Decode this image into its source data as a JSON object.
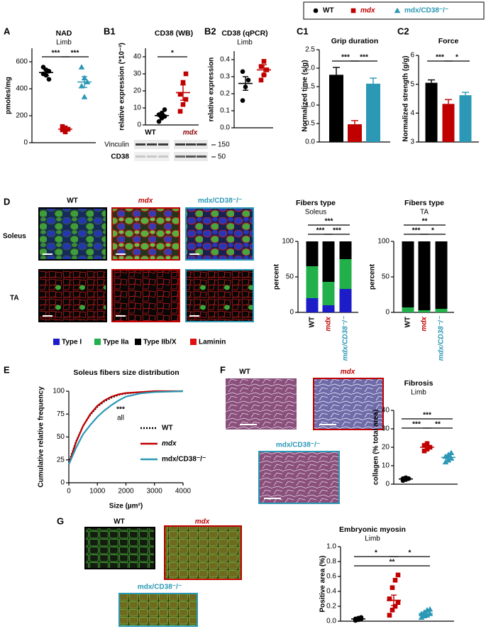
{
  "figure": {
    "legend": [
      {
        "name": "WT",
        "color": "#000000",
        "marker": "circle"
      },
      {
        "name": "mdx",
        "color": "#c00000",
        "marker": "square"
      },
      {
        "name": "mdx/CD38⁻/⁻",
        "color": "#2b98b5",
        "marker": "triangle"
      }
    ],
    "panel_labels": [
      "A",
      "B1",
      "B2",
      "C1",
      "C2",
      "D",
      "E",
      "F",
      "G"
    ],
    "blot": {
      "groups": [
        "WT",
        "mdx"
      ],
      "rows": [
        "Vinculin",
        "CD38"
      ],
      "sizes": [
        150,
        50
      ]
    },
    "d_images": {
      "columns": [
        "WT",
        "mdx",
        "mdx/CD38⁻/⁻"
      ],
      "rows": [
        "Soleus",
        "TA"
      ]
    },
    "fiber_legend": [
      {
        "name": "Type I",
        "color": "#1c1cc8"
      },
      {
        "name": "Type IIa",
        "color": "#22b04a"
      },
      {
        "name": "Type IIb/X",
        "color": "#000000"
      },
      {
        "name": "Laminin",
        "color": "#e01010"
      }
    ],
    "f_images": [
      "WT",
      "mdx",
      "mdx/CD38⁻/⁻"
    ],
    "g_images": [
      "WT",
      "mdx",
      "mdx/CD38⁻/⁻"
    ]
  },
  "chart_data": [
    {
      "type": "dotplot",
      "title": "NAD",
      "subtitle": "Limb",
      "ylabel": "pmoles/mg",
      "ylim": [
        0,
        700
      ],
      "yticks": [
        0,
        200,
        400,
        600
      ],
      "series": [
        {
          "color": "#000000",
          "marker": "circle",
          "values": [
            560,
            540,
            530,
            510,
            500,
            470
          ],
          "mean": 520,
          "sem": 22
        },
        {
          "color": "#c00000",
          "marker": "square",
          "values": [
            120,
            110,
            100,
            95,
            80
          ],
          "mean": 100,
          "sem": 12
        },
        {
          "color": "#2b98b5",
          "marker": "triangle",
          "values": [
            560,
            480,
            450,
            420,
            340
          ],
          "mean": 450,
          "sem": 40
        }
      ],
      "brackets": [
        {
          "label": "***",
          "between": [
            0,
            1
          ]
        },
        {
          "label": "***",
          "between": [
            1,
            2
          ]
        }
      ]
    },
    {
      "type": "dotplot",
      "title": "CD38 (WB)",
      "ylabel": "relative expression (*10⁻³)",
      "ylim": [
        0,
        45
      ],
      "yticks": [
        0,
        10,
        20,
        30,
        40
      ],
      "series": [
        {
          "color": "#000000",
          "marker": "circle",
          "values": [
            2,
            4,
            5,
            6,
            7,
            9
          ],
          "mean": 5.5,
          "sem": 1
        },
        {
          "color": "#c00000",
          "marker": "square",
          "values": [
            8,
            12,
            15,
            18,
            25,
            30
          ],
          "mean": 19,
          "sem": 4.5
        }
      ],
      "brackets": [
        {
          "label": "*",
          "between": [
            0,
            1
          ]
        }
      ]
    },
    {
      "type": "dotplot",
      "title": "CD38 (qPCR)",
      "subtitle": "Limb",
      "ylabel": "relative expression",
      "ylim": [
        0,
        0.45
      ],
      "yticks": [
        {
          "value": 0,
          "label": "0.0"
        },
        0.1,
        0.2,
        0.3,
        0.4
      ],
      "series": [
        {
          "color": "#000000",
          "marker": "circle",
          "values": [
            0.16,
            0.24,
            0.28,
            0.33
          ],
          "mean": 0.26,
          "sem": 0.04
        },
        {
          "color": "#c00000",
          "marker": "square",
          "values": [
            0.28,
            0.31,
            0.34,
            0.36,
            0.39
          ],
          "mean": 0.34,
          "sem": 0.03
        }
      ]
    },
    {
      "type": "bar",
      "title": "Grip duration",
      "ylabel": "Normalized time (s/g)",
      "ylim": [
        0,
        2.5
      ],
      "yticks": [
        {
          "value": 0,
          "label": "0.0"
        },
        0.5,
        {
          "value": 1,
          "label": "1.0"
        },
        1.5,
        {
          "value": 2,
          "label": "2.0"
        },
        2.5
      ],
      "values": [
        1.82,
        0.48,
        1.58
      ],
      "errors": [
        0.2,
        0.1,
        0.15
      ],
      "colors": [
        "#000000",
        "#c00000",
        "#2b98b5"
      ],
      "brackets": [
        {
          "label": "***",
          "between": [
            0,
            1
          ]
        },
        {
          "label": "***",
          "between": [
            1,
            2
          ]
        }
      ]
    },
    {
      "type": "bar",
      "title": "Force",
      "ylabel": "Normalized strength (g/g)",
      "ylim": [
        3,
        6
      ],
      "yticks": [
        3,
        4,
        5,
        6
      ],
      "values": [
        5.05,
        4.32,
        4.62
      ],
      "errors": [
        0.1,
        0.15,
        0.1
      ],
      "colors": [
        "#000000",
        "#c00000",
        "#2b98b5"
      ],
      "brackets": [
        {
          "label": "***",
          "between": [
            0,
            1
          ]
        },
        {
          "label": "*",
          "between": [
            1,
            2
          ]
        }
      ]
    },
    {
      "type": "stacked",
      "title": "Fibers type",
      "subtitle": "Soleus",
      "ylabel": "percent",
      "ylim": [
        0,
        100
      ],
      "yticks": [
        0,
        50,
        100
      ],
      "categories": [
        "WT",
        "mdx",
        "mdx/CD38⁻/⁻"
      ],
      "series": [
        {
          "color": "#1c1cc8",
          "values": [
            20,
            10,
            33
          ]
        },
        {
          "color": "#22b04a",
          "values": [
            45,
            33,
            42
          ]
        },
        {
          "color": "#000000",
          "values": [
            35,
            57,
            25
          ]
        }
      ],
      "brackets": [
        {
          "label": "***",
          "between": [
            0,
            2
          ]
        },
        {
          "label": "***",
          "between": [
            0,
            1
          ]
        },
        {
          "label": "***",
          "between": [
            1,
            2
          ]
        }
      ]
    },
    {
      "type": "stacked",
      "title": "Fibers type",
      "subtitle": "TA",
      "ylabel": "percent",
      "ylim": [
        0,
        100
      ],
      "yticks": [
        0,
        50,
        100
      ],
      "categories": [
        "WT",
        "mdx",
        "mdx/CD38⁻/⁻"
      ],
      "series": [
        {
          "color": "#1c1cc8",
          "values": [
            0,
            0,
            0
          ]
        },
        {
          "color": "#22b04a",
          "values": [
            7,
            3,
            5
          ]
        },
        {
          "color": "#000000",
          "values": [
            93,
            97,
            95
          ]
        }
      ],
      "brackets": [
        {
          "label": "**",
          "between": [
            0,
            2
          ]
        },
        {
          "label": "***",
          "between": [
            0,
            1
          ]
        },
        {
          "label": "*",
          "between": [
            1,
            2
          ]
        }
      ]
    },
    {
      "type": "line",
      "title": "Soleus fibers size distribution",
      "ylabel": "Cumulative relative frequency",
      "xlabel": "Size (µm²)",
      "x": [
        0,
        250,
        500,
        750,
        1000,
        1250,
        1500,
        1750,
        2000,
        2500,
        3000,
        4000
      ],
      "xlim": [
        0,
        4000
      ],
      "xticks": [
        0,
        1000,
        2000,
        3000,
        4000
      ],
      "ylim": [
        0,
        100
      ],
      "yticks": [
        0,
        25,
        50,
        75,
        100
      ],
      "series": [
        {
          "name": "WT",
          "color": "#000000",
          "style": "dotted",
          "values": [
            22,
            45,
            62,
            74,
            83,
            89,
            93,
            96,
            97.5,
            99,
            99.5,
            100
          ]
        },
        {
          "name": "mdx",
          "color": "#c00000",
          "style": "solid",
          "values": [
            20,
            44,
            62,
            75,
            84,
            90,
            94,
            96.5,
            98,
            99,
            100,
            100
          ]
        },
        {
          "name": "mdx/CD38⁻/⁻",
          "color": "#2b98b5",
          "style": "solid",
          "values": [
            20,
            38,
            53,
            63,
            72,
            79,
            85,
            90,
            94,
            97.5,
            99,
            100
          ]
        }
      ],
      "annotations": [
        "***",
        "all"
      ]
    },
    {
      "type": "dotplot",
      "title": "Fibrosis",
      "subtitle": "Limb",
      "ylabel": "collagen (% total area)",
      "ylim": [
        0,
        40
      ],
      "yticks": [
        0,
        10,
        20,
        30,
        40
      ],
      "series": [
        {
          "color": "#000000",
          "marker": "circle",
          "values": [
            2,
            2.5,
            3,
            3,
            3.5
          ],
          "mean": 2.8,
          "sem": 0.3
        },
        {
          "color": "#c00000",
          "marker": "square",
          "values": [
            18,
            19,
            20,
            21,
            22
          ],
          "mean": 20,
          "sem": 1
        },
        {
          "color": "#2b98b5",
          "marker": "triangle",
          "values": [
            12,
            13,
            14,
            15,
            16,
            17
          ],
          "mean": 14.5,
          "sem": 1
        }
      ],
      "brackets": [
        {
          "label": "***",
          "between": [
            0,
            2
          ]
        },
        {
          "label": "***",
          "between": [
            0,
            1
          ]
        },
        {
          "label": "**",
          "between": [
            1,
            2
          ]
        }
      ]
    },
    {
      "type": "dotplot",
      "title": "Embryonic myosin",
      "subtitle": "Limb",
      "ylabel": "Positive area (%)",
      "ylim": [
        0,
        1
      ],
      "yticks": [
        {
          "value": 0,
          "label": "0.0"
        },
        0.2,
        0.4,
        0.6,
        0.8,
        {
          "value": 1,
          "label": "1.0"
        }
      ],
      "series": [
        {
          "color": "#000000",
          "marker": "circle",
          "values": [
            0.01,
            0.02,
            0.03,
            0.03,
            0.04,
            0.05
          ],
          "mean": 0.03,
          "sem": 0.01
        },
        {
          "color": "#c00000",
          "marker": "square",
          "values": [
            0.08,
            0.15,
            0.2,
            0.25,
            0.3,
            0.45,
            0.55,
            0.62
          ],
          "mean": 0.28,
          "sem": 0.07
        },
        {
          "color": "#2b98b5",
          "marker": "triangle",
          "values": [
            0.05,
            0.07,
            0.08,
            0.1,
            0.1,
            0.12,
            0.15,
            0.16
          ],
          "mean": 0.1,
          "sem": 0.02
        }
      ],
      "brackets": [
        {
          "label": "*",
          "between": [
            0,
            1
          ]
        },
        {
          "label": "*",
          "between": [
            1,
            2
          ]
        },
        {
          "label": "**",
          "between": [
            0,
            2
          ]
        }
      ]
    }
  ]
}
